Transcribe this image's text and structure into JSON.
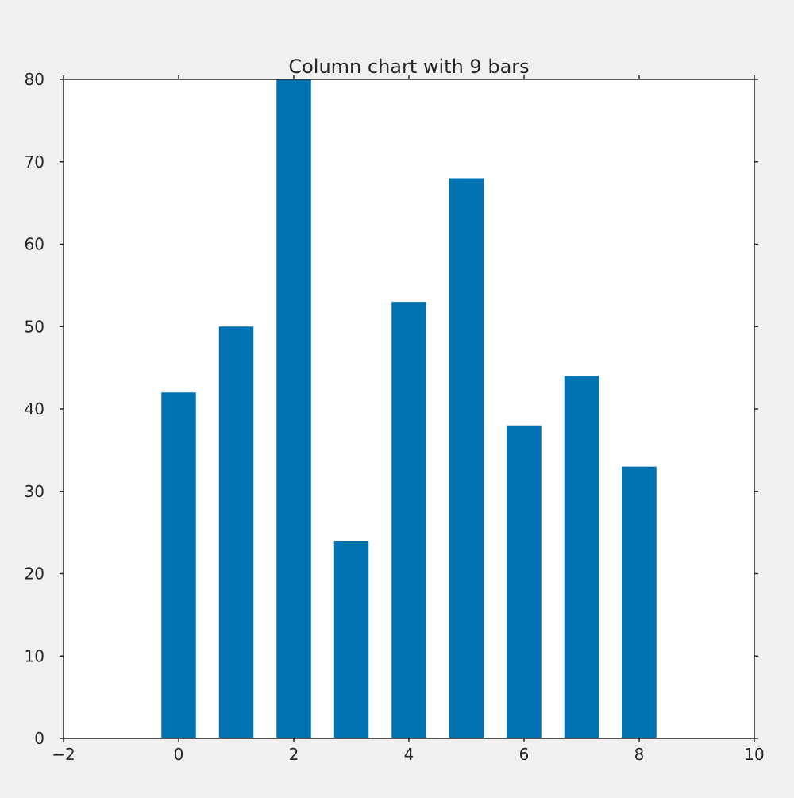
{
  "chart_data": {
    "type": "bar",
    "title": "Column chart with 9 bars",
    "xlabel": "",
    "ylabel": "",
    "x": [
      0,
      1,
      2,
      3,
      4,
      5,
      6,
      7,
      8
    ],
    "values": [
      42,
      50,
      80,
      24,
      53,
      68,
      38,
      44,
      33
    ],
    "bar_width": 0.6,
    "xlim": [
      -2,
      10
    ],
    "ylim": [
      0,
      80
    ],
    "xticks": [
      -2,
      0,
      2,
      4,
      6,
      8,
      10
    ],
    "xtick_labels": [
      "−2",
      "0",
      "2",
      "4",
      "6",
      "8",
      "10"
    ],
    "yticks": [
      0,
      10,
      20,
      30,
      40,
      50,
      60,
      70,
      80
    ],
    "ytick_labels": [
      "0",
      "10",
      "20",
      "30",
      "40",
      "50",
      "60",
      "70",
      "80"
    ],
    "grid": false,
    "legend": "none",
    "colors": {
      "bar": "#0072b2",
      "axes_edge": "#262626",
      "plot_background": "#ffffff",
      "figure_background": "#f0f0f0"
    }
  }
}
